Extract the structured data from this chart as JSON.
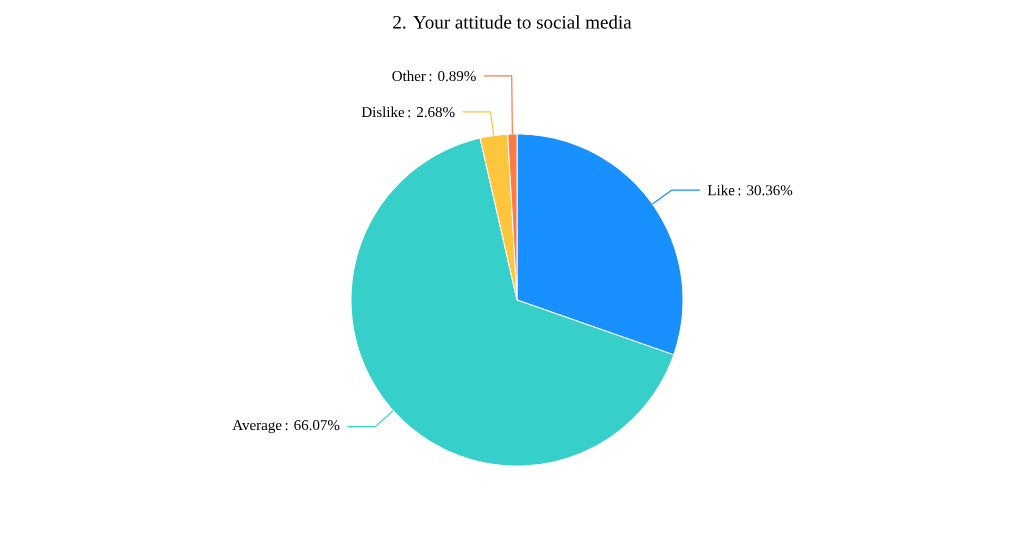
{
  "chart_data": {
    "type": "pie",
    "title": "2. Your attitude to social media",
    "categories": [
      "Like",
      "Average",
      "Dislike",
      "Other"
    ],
    "values": [
      30.36,
      66.07,
      2.68,
      0.89
    ],
    "value_labels": [
      ": 30.36%",
      ": 66.07%",
      ": 2.68%",
      ": 0.89%"
    ],
    "colors": [
      "#1890ff",
      "#36cfc9",
      "#ffc53d",
      "#ff7a45"
    ]
  }
}
